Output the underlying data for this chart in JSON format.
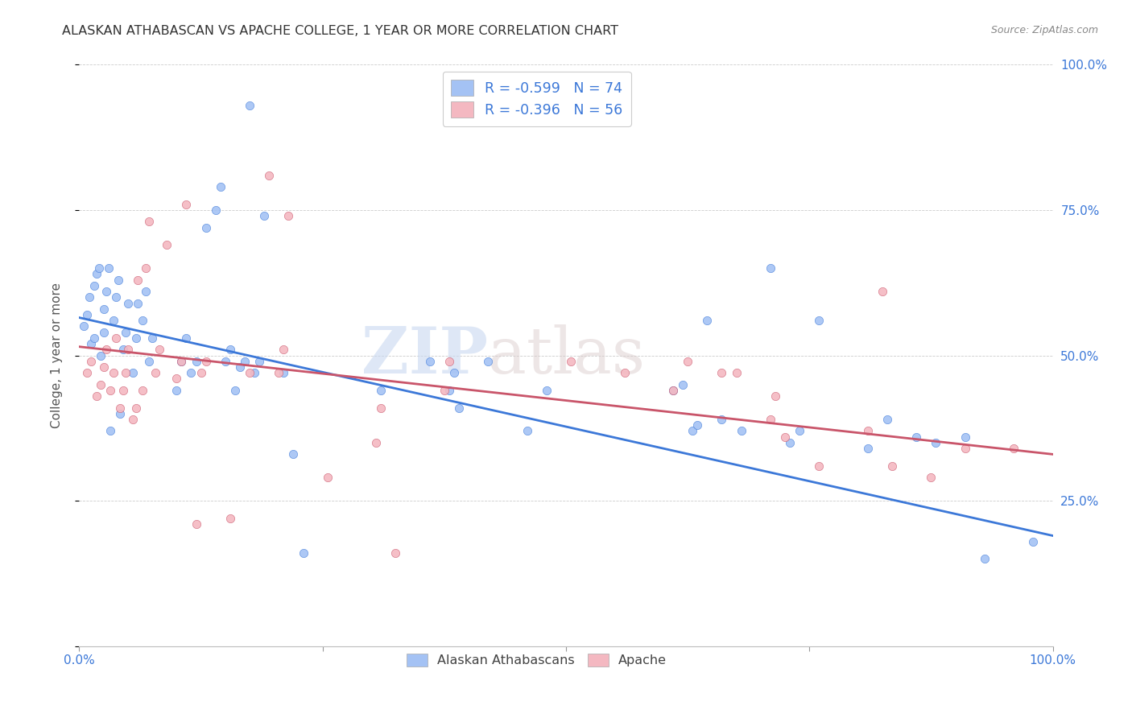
{
  "title": "ALASKAN ATHABASCAN VS APACHE COLLEGE, 1 YEAR OR MORE CORRELATION CHART",
  "source": "Source: ZipAtlas.com",
  "ylabel": "College, 1 year or more",
  "R1": -0.599,
  "N1": 74,
  "R2": -0.396,
  "N2": 56,
  "color1": "#a4c2f4",
  "color2": "#f4b8c1",
  "line_color1": "#3c78d8",
  "line_color2": "#c9556a",
  "legend_label_1": "Alaskan Athabascans",
  "legend_label_2": "Apache",
  "watermark_zip": "ZIP",
  "watermark_atlas": "atlas",
  "xlim": [
    0.0,
    1.0
  ],
  "ylim": [
    0.0,
    1.0
  ],
  "xticks": [
    0.0,
    0.25,
    0.5,
    0.75,
    1.0
  ],
  "yticks": [
    0.0,
    0.25,
    0.5,
    0.75,
    1.0
  ],
  "blue_line_x": [
    0.0,
    1.0
  ],
  "blue_line_y": [
    0.565,
    0.19
  ],
  "pink_line_x": [
    0.0,
    1.0
  ],
  "pink_line_y": [
    0.515,
    0.33
  ],
  "blue_points": [
    [
      0.005,
      0.55
    ],
    [
      0.008,
      0.57
    ],
    [
      0.01,
      0.6
    ],
    [
      0.012,
      0.52
    ],
    [
      0.015,
      0.53
    ],
    [
      0.015,
      0.62
    ],
    [
      0.018,
      0.64
    ],
    [
      0.02,
      0.65
    ],
    [
      0.022,
      0.5
    ],
    [
      0.025,
      0.54
    ],
    [
      0.025,
      0.58
    ],
    [
      0.028,
      0.61
    ],
    [
      0.03,
      0.65
    ],
    [
      0.032,
      0.37
    ],
    [
      0.035,
      0.56
    ],
    [
      0.038,
      0.6
    ],
    [
      0.04,
      0.63
    ],
    [
      0.042,
      0.4
    ],
    [
      0.045,
      0.51
    ],
    [
      0.048,
      0.54
    ],
    [
      0.05,
      0.59
    ],
    [
      0.055,
      0.47
    ],
    [
      0.058,
      0.53
    ],
    [
      0.06,
      0.59
    ],
    [
      0.065,
      0.56
    ],
    [
      0.068,
      0.61
    ],
    [
      0.072,
      0.49
    ],
    [
      0.075,
      0.53
    ],
    [
      0.1,
      0.44
    ],
    [
      0.105,
      0.49
    ],
    [
      0.11,
      0.53
    ],
    [
      0.115,
      0.47
    ],
    [
      0.12,
      0.49
    ],
    [
      0.13,
      0.72
    ],
    [
      0.14,
      0.75
    ],
    [
      0.145,
      0.79
    ],
    [
      0.15,
      0.49
    ],
    [
      0.155,
      0.51
    ],
    [
      0.16,
      0.44
    ],
    [
      0.165,
      0.48
    ],
    [
      0.17,
      0.49
    ],
    [
      0.175,
      0.93
    ],
    [
      0.18,
      0.47
    ],
    [
      0.185,
      0.49
    ],
    [
      0.19,
      0.74
    ],
    [
      0.21,
      0.47
    ],
    [
      0.22,
      0.33
    ],
    [
      0.23,
      0.16
    ],
    [
      0.31,
      0.44
    ],
    [
      0.36,
      0.49
    ],
    [
      0.38,
      0.44
    ],
    [
      0.385,
      0.47
    ],
    [
      0.39,
      0.41
    ],
    [
      0.42,
      0.49
    ],
    [
      0.46,
      0.37
    ],
    [
      0.48,
      0.44
    ],
    [
      0.61,
      0.44
    ],
    [
      0.62,
      0.45
    ],
    [
      0.63,
      0.37
    ],
    [
      0.635,
      0.38
    ],
    [
      0.645,
      0.56
    ],
    [
      0.66,
      0.39
    ],
    [
      0.68,
      0.37
    ],
    [
      0.71,
      0.65
    ],
    [
      0.73,
      0.35
    ],
    [
      0.74,
      0.37
    ],
    [
      0.76,
      0.56
    ],
    [
      0.81,
      0.34
    ],
    [
      0.83,
      0.39
    ],
    [
      0.86,
      0.36
    ],
    [
      0.88,
      0.35
    ],
    [
      0.91,
      0.36
    ],
    [
      0.93,
      0.15
    ],
    [
      0.98,
      0.18
    ]
  ],
  "pink_points": [
    [
      0.008,
      0.47
    ],
    [
      0.012,
      0.49
    ],
    [
      0.018,
      0.43
    ],
    [
      0.022,
      0.45
    ],
    [
      0.025,
      0.48
    ],
    [
      0.028,
      0.51
    ],
    [
      0.032,
      0.44
    ],
    [
      0.035,
      0.47
    ],
    [
      0.038,
      0.53
    ],
    [
      0.042,
      0.41
    ],
    [
      0.045,
      0.44
    ],
    [
      0.048,
      0.47
    ],
    [
      0.05,
      0.51
    ],
    [
      0.055,
      0.39
    ],
    [
      0.058,
      0.41
    ],
    [
      0.06,
      0.63
    ],
    [
      0.065,
      0.44
    ],
    [
      0.068,
      0.65
    ],
    [
      0.072,
      0.73
    ],
    [
      0.078,
      0.47
    ],
    [
      0.082,
      0.51
    ],
    [
      0.09,
      0.69
    ],
    [
      0.1,
      0.46
    ],
    [
      0.105,
      0.49
    ],
    [
      0.11,
      0.76
    ],
    [
      0.12,
      0.21
    ],
    [
      0.125,
      0.47
    ],
    [
      0.13,
      0.49
    ],
    [
      0.155,
      0.22
    ],
    [
      0.175,
      0.47
    ],
    [
      0.195,
      0.81
    ],
    [
      0.205,
      0.47
    ],
    [
      0.21,
      0.51
    ],
    [
      0.215,
      0.74
    ],
    [
      0.255,
      0.29
    ],
    [
      0.305,
      0.35
    ],
    [
      0.31,
      0.41
    ],
    [
      0.325,
      0.16
    ],
    [
      0.375,
      0.44
    ],
    [
      0.38,
      0.49
    ],
    [
      0.505,
      0.49
    ],
    [
      0.56,
      0.47
    ],
    [
      0.61,
      0.44
    ],
    [
      0.625,
      0.49
    ],
    [
      0.66,
      0.47
    ],
    [
      0.675,
      0.47
    ],
    [
      0.71,
      0.39
    ],
    [
      0.715,
      0.43
    ],
    [
      0.725,
      0.36
    ],
    [
      0.76,
      0.31
    ],
    [
      0.81,
      0.37
    ],
    [
      0.825,
      0.61
    ],
    [
      0.835,
      0.31
    ],
    [
      0.875,
      0.29
    ],
    [
      0.91,
      0.34
    ],
    [
      0.96,
      0.34
    ]
  ]
}
